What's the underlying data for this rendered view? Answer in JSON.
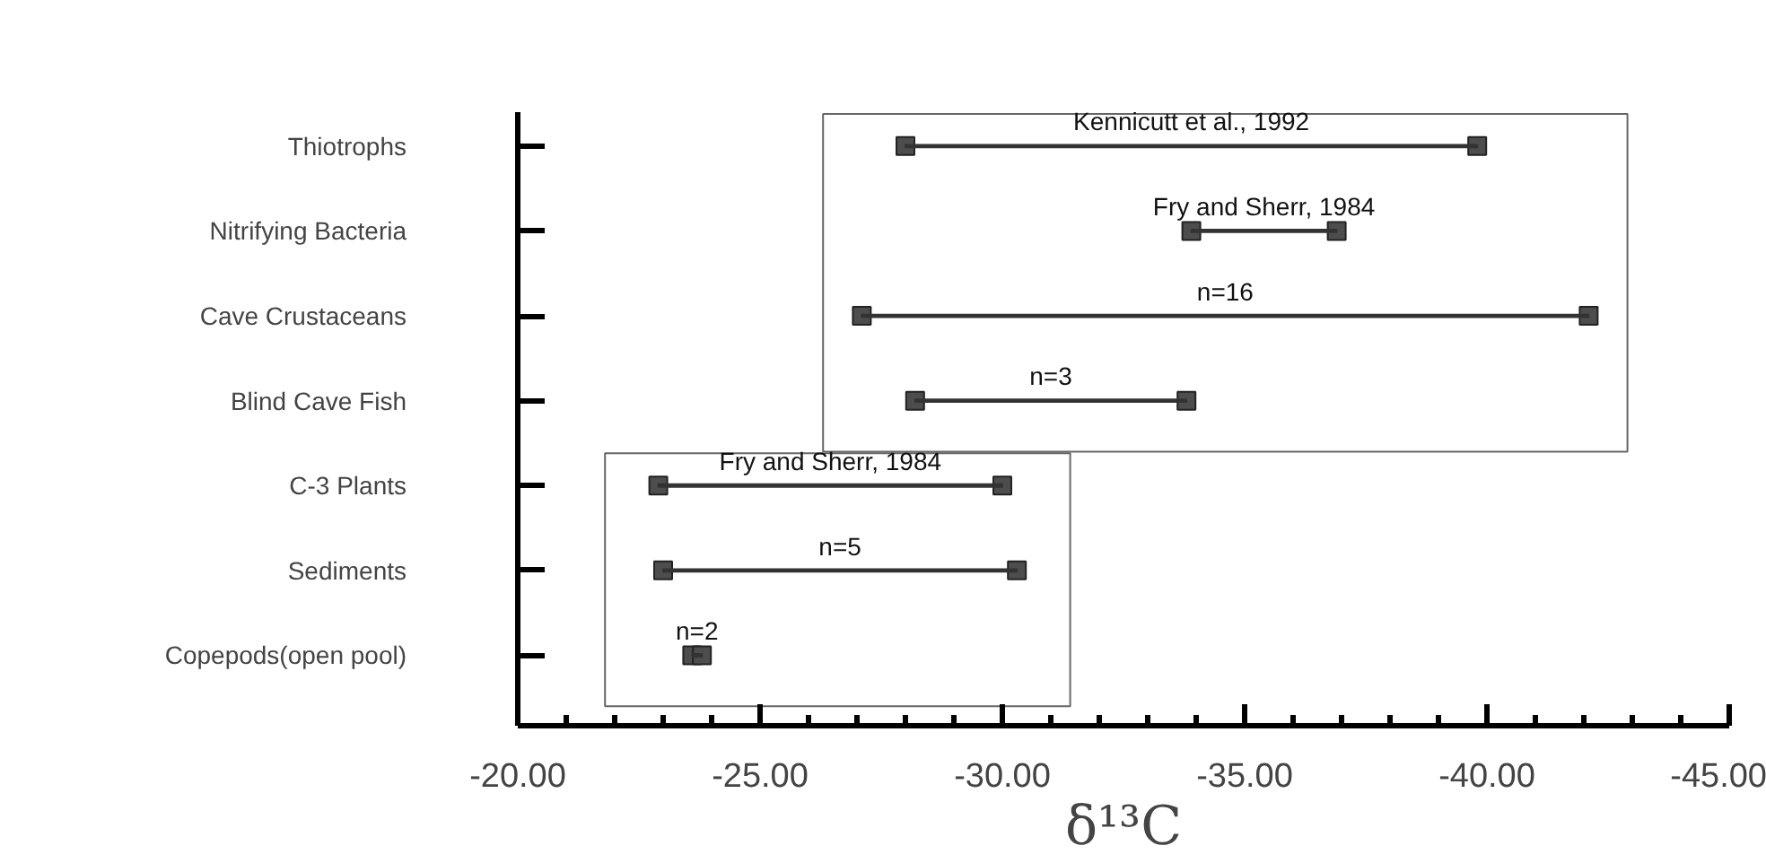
{
  "chart_data": {
    "type": "bar",
    "orientation": "horizontal",
    "xlabel": "δ¹³C",
    "categories": [
      "Thiotrophs",
      "Nitrifying Bacteria",
      "Cave Crustaceans",
      "Blind Cave Fish",
      "C-3 Plants",
      "Sediments",
      "Copepods(open pool)"
    ],
    "series": [
      {
        "color": "#333333",
        "base": [
          -28.0,
          -33.9,
          -27.1,
          -28.2,
          -22.9,
          -23.0,
          -23.6
        ],
        "values": [
          -11.8,
          -3.0,
          -15.0,
          -5.6,
          -7.1,
          -7.3,
          -0.2
        ]
      },
      {
        "type": "scatter",
        "marker": "square",
        "color": "#4d4d4d",
        "values": [
          -28.0,
          -33.9,
          -27.1,
          -28.2,
          -22.9,
          -23.0,
          -23.6
        ]
      },
      {
        "type": "scatter",
        "marker": "square",
        "color": "#4d4d4d",
        "values": [
          -39.8,
          -36.9,
          -42.1,
          -33.8,
          -30.0,
          -30.3,
          -23.8
        ]
      }
    ],
    "xlim": [
      -20,
      -45
    ],
    "xticks": [
      {
        "value": -20,
        "label": "-20.00"
      },
      {
        "value": -25,
        "label": "-25.00"
      },
      {
        "value": -30,
        "label": "-30.00"
      },
      {
        "value": -35,
        "label": "-35.00"
      },
      {
        "value": -40,
        "label": "-40.00"
      },
      {
        "value": -45,
        "label": "-45.00"
      }
    ],
    "annotations": [
      "Kennicutt et al., 1992",
      "Fry and Sherr, 1984",
      "n=16",
      "n=3",
      "Fry and Sherr, 1984",
      "n=5",
      "n=2"
    ],
    "grid": false
  }
}
